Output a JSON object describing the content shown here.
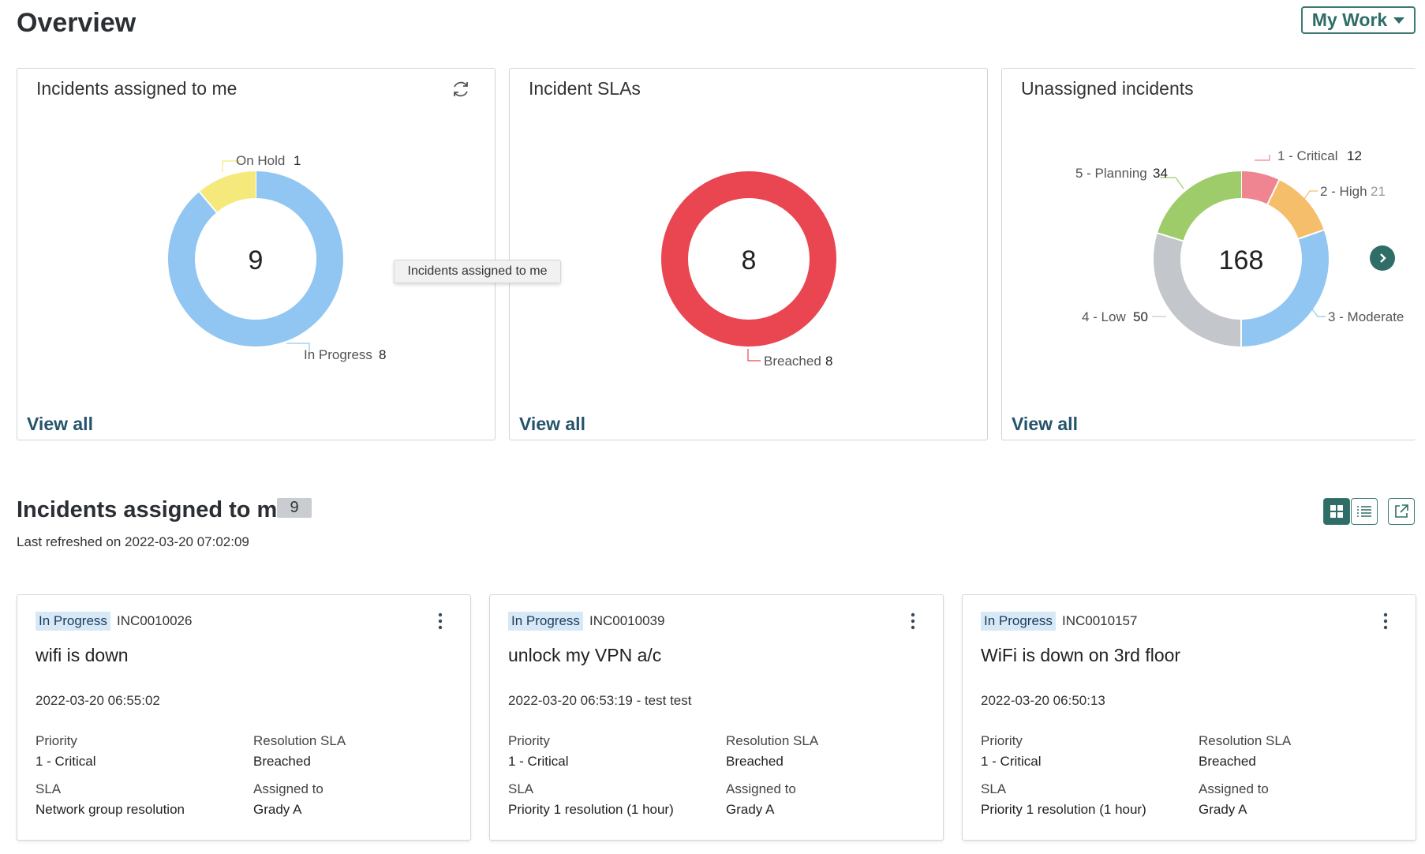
{
  "page": {
    "title": "Overview",
    "view_selector": "My Work"
  },
  "widgets": [
    {
      "title": "Incidents assigned to me",
      "total": "9",
      "view_all": "View all",
      "slices": [
        {
          "label": "In Progress",
          "value": 8,
          "color": "#90c6f1"
        },
        {
          "label": "On Hold",
          "value": 1,
          "color": "#f4e97a"
        }
      ]
    },
    {
      "title": "Incident SLAs",
      "total": "8",
      "view_all": "View all",
      "slices": [
        {
          "label": "Breached",
          "value": 8,
          "color": "#ea4652"
        }
      ]
    },
    {
      "title": "Unassigned incidents",
      "total": "168",
      "view_all": "View all",
      "slices": [
        {
          "label": "1 - Critical",
          "value": 12,
          "color": "#ef8591"
        },
        {
          "label": "2 - High",
          "value": 21,
          "color": "#f5be6b"
        },
        {
          "label": "3 - Moderate",
          "value": 51,
          "color": "#90c6f1"
        },
        {
          "label": "4 - Low",
          "value": 50,
          "color": "#c3c6cb"
        },
        {
          "label": "5 - Planning",
          "value": 34,
          "color": "#9fcc6a"
        }
      ]
    }
  ],
  "tooltip": "Incidents assigned to me",
  "list": {
    "title": "Incidents assigned to me",
    "count": "9",
    "last_refreshed": "Last refreshed on 2022-03-20 07:02:09"
  },
  "cards": [
    {
      "state": "In Progress",
      "number": "INC0010026",
      "short_description": "wifi is down",
      "opened": "2022-03-20 06:55:02",
      "priority_label": "Priority",
      "priority": "1 - Critical",
      "resolution_sla_label": "Resolution SLA",
      "resolution_sla": "Breached",
      "sla_label": "SLA",
      "sla": "Network group resolution",
      "assigned_label": "Assigned to",
      "assigned_to": "Grady A"
    },
    {
      "state": "In Progress",
      "number": "INC0010039",
      "short_description": "unlock my VPN a/c",
      "opened": "2022-03-20 06:53:19 - test test",
      "priority_label": "Priority",
      "priority": "1 - Critical",
      "resolution_sla_label": "Resolution SLA",
      "resolution_sla": "Breached",
      "sla_label": "SLA",
      "sla": "Priority 1 resolution (1 hour)",
      "assigned_label": "Assigned to",
      "assigned_to": "Grady A"
    },
    {
      "state": "In Progress",
      "number": "INC0010157",
      "short_description": "WiFi is down on 3rd floor",
      "opened": "2022-03-20 06:50:13",
      "priority_label": "Priority",
      "priority": "1 - Critical",
      "resolution_sla_label": "Resolution SLA",
      "resolution_sla": "Breached",
      "sla_label": "SLA",
      "sla": "Priority 1 resolution (1 hour)",
      "assigned_label": "Assigned to",
      "assigned_to": "Grady A"
    }
  ],
  "icons": {
    "refresh": "refresh-icon",
    "next": "chevron-right-icon",
    "grid": "grid-view-icon",
    "list": "list-view-icon",
    "open": "open-external-icon",
    "more": "more-vertical-icon"
  }
}
